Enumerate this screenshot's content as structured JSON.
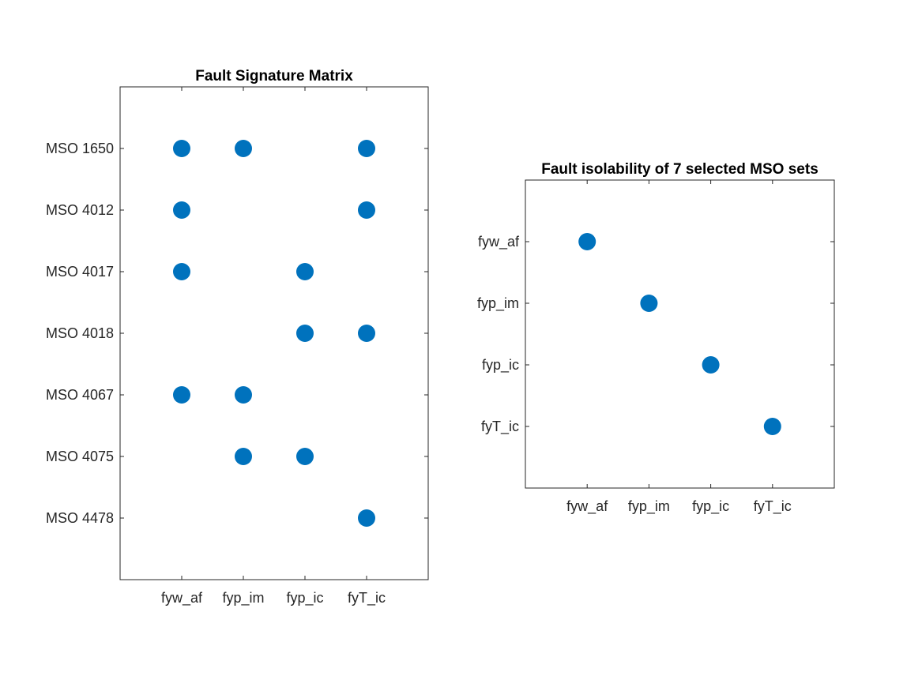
{
  "chart_data": [
    {
      "type": "scatter",
      "title": "Fault Signature Matrix",
      "xlabel": "",
      "ylabel": "",
      "x_categories": [
        "fyw_af",
        "fyp_im",
        "fyp_ic",
        "fyT_ic"
      ],
      "y_categories": [
        "MSO 1650",
        "MSO 4012",
        "MSO 4017",
        "MSO 4018",
        "MSO 4067",
        "MSO 4075",
        "MSO 4478"
      ],
      "points": [
        {
          "x": "fyw_af",
          "y": "MSO 1650"
        },
        {
          "x": "fyp_im",
          "y": "MSO 1650"
        },
        {
          "x": "fyT_ic",
          "y": "MSO 1650"
        },
        {
          "x": "fyw_af",
          "y": "MSO 4012"
        },
        {
          "x": "fyT_ic",
          "y": "MSO 4012"
        },
        {
          "x": "fyw_af",
          "y": "MSO 4017"
        },
        {
          "x": "fyp_ic",
          "y": "MSO 4017"
        },
        {
          "x": "fyp_ic",
          "y": "MSO 4018"
        },
        {
          "x": "fyT_ic",
          "y": "MSO 4018"
        },
        {
          "x": "fyw_af",
          "y": "MSO 4067"
        },
        {
          "x": "fyp_im",
          "y": "MSO 4067"
        },
        {
          "x": "fyp_im",
          "y": "MSO 4075"
        },
        {
          "x": "fyp_ic",
          "y": "MSO 4075"
        },
        {
          "x": "fyT_ic",
          "y": "MSO 4478"
        }
      ],
      "grid": false,
      "marker_color": "#0072BD"
    },
    {
      "type": "scatter",
      "title": "Fault isolability of 7 selected MSO sets",
      "xlabel": "",
      "ylabel": "",
      "x_categories": [
        "fyw_af",
        "fyp_im",
        "fyp_ic",
        "fyT_ic"
      ],
      "y_categories": [
        "fyw_af",
        "fyp_im",
        "fyp_ic",
        "fyT_ic"
      ],
      "points": [
        {
          "x": "fyw_af",
          "y": "fyw_af"
        },
        {
          "x": "fyp_im",
          "y": "fyp_im"
        },
        {
          "x": "fyp_ic",
          "y": "fyp_ic"
        },
        {
          "x": "fyT_ic",
          "y": "fyT_ic"
        }
      ],
      "grid": false,
      "marker_color": "#0072BD"
    }
  ]
}
